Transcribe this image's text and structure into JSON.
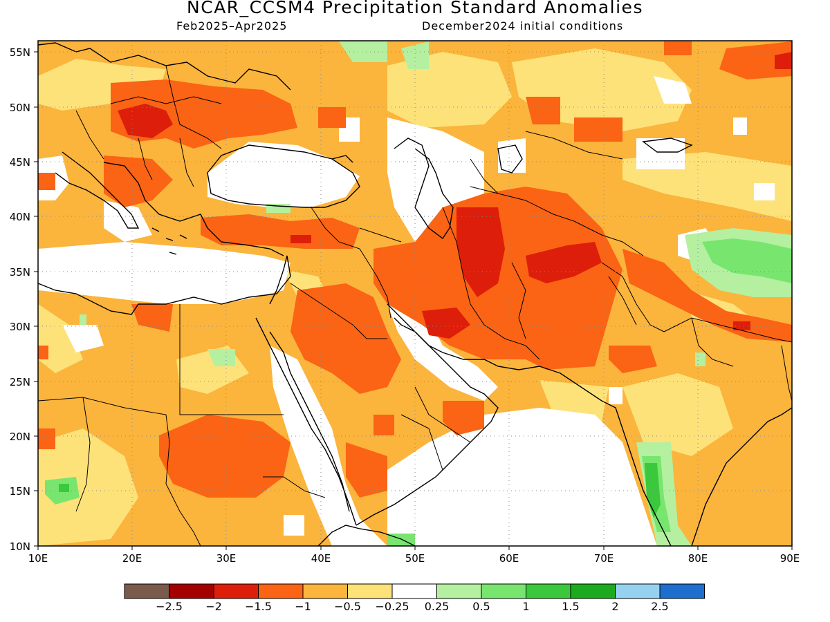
{
  "header": {
    "title": "NCAR_CCSM4 Precipitation Standard Anomalies",
    "period": "Feb2025–Apr2025",
    "init": "December2024 initial conditions"
  },
  "map": {
    "lon_labels": [
      "10E",
      "20E",
      "30E",
      "40E",
      "50E",
      "60E",
      "70E",
      "80E",
      "90E"
    ],
    "lat_labels": [
      "55N",
      "50N",
      "45N",
      "40N",
      "35N",
      "30N",
      "25N",
      "20N",
      "15N",
      "10N"
    ],
    "lon_range": [
      10,
      90
    ],
    "lat_range": [
      10,
      56
    ]
  },
  "colorbar": {
    "colors": [
      "#7a5a4a",
      "#a50000",
      "#dd1e0a",
      "#fa6414",
      "#fbb43c",
      "#fde27a",
      "#ffffff",
      "#b4f0a0",
      "#78e66e",
      "#3cc83c",
      "#1eaa1e",
      "#96d2f0",
      "#1e6ecd"
    ],
    "labels": [
      "−2.5",
      "−2",
      "−1.5",
      "−1",
      "−0.5",
      "−0.25",
      "0.25",
      "0.5",
      "1",
      "1.5",
      "2",
      "2.5"
    ]
  }
}
